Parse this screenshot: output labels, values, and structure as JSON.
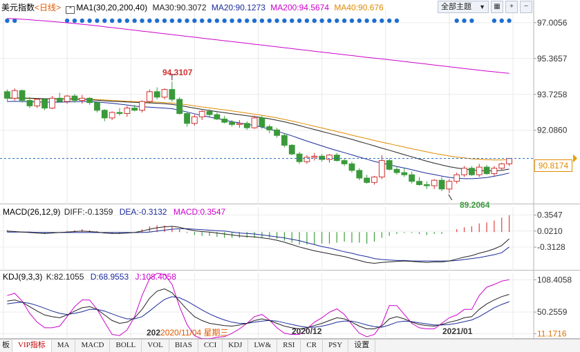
{
  "main_header": {
    "name": "美元指数",
    "period": "<日线>",
    "indicator": "MA1(30,20,200,40)",
    "ma30": "MA30:90.3072",
    "ma20": "MA20:90.1273",
    "ma200": "MA200:94.5674",
    "ma40": "MA40:90.676",
    "theme_button": "全部主题",
    "colors": {
      "ma30": "#222222",
      "ma20": "#1a2a9a",
      "ma200": "#cc00cc",
      "ma40": "#e08a00",
      "up": "#d03030",
      "down": "#3a9a3a"
    }
  },
  "macd_header": {
    "name": "MACD(26,12,9)",
    "diff": "DIFF:-0.1359",
    "dea": "DEA:-0.3132",
    "macd": "MACD:0.3547"
  },
  "kdj_header": {
    "name": "KDJ(9,3,3)",
    "k": "K:82.1055",
    "d": "D:68.9553",
    "j": "J:108.4058"
  },
  "annotations": {
    "high": "94.3107",
    "low": "89.2064"
  },
  "current_price": "90.8174",
  "date_labels": {
    "d1": "202",
    "d1_hover": "2020/11/04 星期三",
    "d2": "2020/12",
    "d3": "2021/01"
  },
  "tabs": [
    "板",
    "VIP指标",
    "MA",
    "MACD",
    "BOLL",
    "VOL",
    "BIAS",
    "CCI",
    "KDJ",
    "LW&",
    "RSI",
    "CR",
    "PSY",
    "设置"
  ],
  "chart_data": [
    {
      "type": "candlestick",
      "title": "美元指数 <日线>",
      "y_ticks": [
        "97.0056",
        "95.3657",
        "93.7258",
        "92.0860"
      ],
      "y_ticks_values": [
        97.0056,
        95.3657,
        93.7258,
        92.086
      ],
      "ylim": [
        88.7,
        97.6
      ],
      "x_labels": [
        "2020/12",
        "2021/01"
      ],
      "candles": [
        [
          93.85,
          93.95,
          93.4,
          93.55
        ],
        [
          93.55,
          94.0,
          93.45,
          93.9
        ],
        [
          93.9,
          93.95,
          93.35,
          93.45
        ],
        [
          93.45,
          93.6,
          93.1,
          93.2
        ],
        [
          93.2,
          93.55,
          93.1,
          93.5
        ],
        [
          93.5,
          93.55,
          93.0,
          93.1
        ],
        [
          93.1,
          93.65,
          93.05,
          93.55
        ],
        [
          93.55,
          93.8,
          93.35,
          93.4
        ],
        [
          93.4,
          93.7,
          93.3,
          93.65
        ],
        [
          93.65,
          93.75,
          93.35,
          93.45
        ],
        [
          93.45,
          93.7,
          93.3,
          93.55
        ],
        [
          93.55,
          93.6,
          93.25,
          93.35
        ],
        [
          93.35,
          93.4,
          92.9,
          93.0
        ],
        [
          93.0,
          93.05,
          92.5,
          92.65
        ],
        [
          92.65,
          92.95,
          92.55,
          92.9
        ],
        [
          92.9,
          93.1,
          92.75,
          92.85
        ],
        [
          92.85,
          93.2,
          92.7,
          93.1
        ],
        [
          93.1,
          93.25,
          92.95,
          93.0
        ],
        [
          93.0,
          93.45,
          92.9,
          93.4
        ],
        [
          93.4,
          93.95,
          93.3,
          93.85
        ],
        [
          93.85,
          94.05,
          93.5,
          93.6
        ],
        [
          93.6,
          94.0,
          93.5,
          93.95
        ],
        [
          93.95,
          94.31,
          93.4,
          93.5
        ],
        [
          93.5,
          93.6,
          92.8,
          92.85
        ],
        [
          92.85,
          92.95,
          92.25,
          92.4
        ],
        [
          92.4,
          92.8,
          92.3,
          92.7
        ],
        [
          92.7,
          93.0,
          92.55,
          92.95
        ],
        [
          92.95,
          93.05,
          92.7,
          92.8
        ],
        [
          92.8,
          92.9,
          92.55,
          92.6
        ],
        [
          92.6,
          92.75,
          92.4,
          92.45
        ],
        [
          92.45,
          92.55,
          92.25,
          92.35
        ],
        [
          92.35,
          92.55,
          92.2,
          92.4
        ],
        [
          92.4,
          92.5,
          92.1,
          92.2
        ],
        [
          92.2,
          92.75,
          92.15,
          92.65
        ],
        [
          92.65,
          92.75,
          92.15,
          92.25
        ],
        [
          92.25,
          92.35,
          91.95,
          92.1
        ],
        [
          92.1,
          92.2,
          91.75,
          91.85
        ],
        [
          91.85,
          91.95,
          91.3,
          91.4
        ],
        [
          91.4,
          91.45,
          90.95,
          91.0
        ],
        [
          91.0,
          91.1,
          90.55,
          90.65
        ],
        [
          90.65,
          90.95,
          90.55,
          90.85
        ],
        [
          90.85,
          91.05,
          90.7,
          90.9
        ],
        [
          90.9,
          91.0,
          90.65,
          90.75
        ],
        [
          90.75,
          91.0,
          90.6,
          90.95
        ],
        [
          90.95,
          91.05,
          90.65,
          90.7
        ],
        [
          90.7,
          90.8,
          90.45,
          90.55
        ],
        [
          90.55,
          90.65,
          90.15,
          90.25
        ],
        [
          90.25,
          90.35,
          89.8,
          89.9
        ],
        [
          89.9,
          90.05,
          89.65,
          89.7
        ],
        [
          89.7,
          90.0,
          89.6,
          89.95
        ],
        [
          89.95,
          90.95,
          89.85,
          90.7
        ],
        [
          90.7,
          90.8,
          90.25,
          90.3
        ],
        [
          90.3,
          90.45,
          90.05,
          90.15
        ],
        [
          90.15,
          90.35,
          89.95,
          90.05
        ],
        [
          90.05,
          90.2,
          89.65,
          89.75
        ],
        [
          89.75,
          89.95,
          89.55,
          89.6
        ],
        [
          89.6,
          89.75,
          89.4,
          89.55
        ],
        [
          89.55,
          89.85,
          89.4,
          89.8
        ],
        [
          89.8,
          89.95,
          89.3,
          89.4
        ],
        [
          89.4,
          89.85,
          89.21,
          89.75
        ],
        [
          89.75,
          90.15,
          89.65,
          90.05
        ],
        [
          90.05,
          90.45,
          89.95,
          90.35
        ],
        [
          90.35,
          90.45,
          90.0,
          90.05
        ],
        [
          90.05,
          90.55,
          89.95,
          90.4
        ],
        [
          90.4,
          90.5,
          90.05,
          90.1
        ],
        [
          90.1,
          90.45,
          90.0,
          90.35
        ],
        [
          90.35,
          90.6,
          90.25,
          90.55
        ],
        [
          90.55,
          90.8,
          90.45,
          90.8
        ]
      ],
      "ma30": [
        93.55,
        93.56,
        93.56,
        93.55,
        93.54,
        93.53,
        93.52,
        93.52,
        93.52,
        93.51,
        93.5,
        93.48,
        93.46,
        93.43,
        93.41,
        93.4,
        93.38,
        93.36,
        93.35,
        93.34,
        93.32,
        93.3,
        93.27,
        93.22,
        93.16,
        93.1,
        93.04,
        92.99,
        92.94,
        92.89,
        92.84,
        92.8,
        92.75,
        92.71,
        92.66,
        92.61,
        92.54,
        92.47,
        92.39,
        92.3,
        92.21,
        92.12,
        92.03,
        91.94,
        91.85,
        91.76,
        91.67,
        91.57,
        91.47,
        91.37,
        91.27,
        91.17,
        91.07,
        90.97,
        90.87,
        90.77,
        90.67,
        90.58,
        90.5,
        90.42,
        90.36,
        90.31,
        90.27,
        90.24,
        90.23,
        90.23,
        90.25,
        90.31
      ],
      "ma20": [
        93.4,
        93.41,
        93.4,
        93.39,
        93.38,
        93.37,
        93.37,
        93.37,
        93.38,
        93.39,
        93.4,
        93.4,
        93.38,
        93.35,
        93.32,
        93.28,
        93.24,
        93.19,
        93.16,
        93.14,
        93.12,
        93.1,
        93.07,
        93.0,
        92.92,
        92.84,
        92.76,
        92.69,
        92.62,
        92.55,
        92.48,
        92.42,
        92.36,
        92.3,
        92.23,
        92.14,
        92.04,
        91.94,
        91.83,
        91.71,
        91.59,
        91.48,
        91.37,
        91.26,
        91.16,
        91.06,
        90.96,
        90.86,
        90.76,
        90.66,
        90.58,
        90.51,
        90.43,
        90.36,
        90.28,
        90.2,
        90.12,
        90.06,
        89.99,
        89.93,
        89.89,
        89.87,
        89.87,
        89.89,
        89.92,
        89.98,
        90.05,
        90.13
      ],
      "ma200": [
        97.2,
        97.18,
        97.16,
        97.14,
        97.11,
        97.09,
        97.06,
        97.03,
        97.0,
        96.97,
        96.93,
        96.9,
        96.86,
        96.82,
        96.78,
        96.74,
        96.7,
        96.66,
        96.62,
        96.58,
        96.54,
        96.5,
        96.46,
        96.42,
        96.38,
        96.34,
        96.3,
        96.26,
        96.22,
        96.18,
        96.14,
        96.1,
        96.06,
        96.02,
        95.98,
        95.94,
        95.9,
        95.86,
        95.82,
        95.78,
        95.74,
        95.7,
        95.66,
        95.62,
        95.58,
        95.54,
        95.5,
        95.46,
        95.42,
        95.38,
        95.35,
        95.31,
        95.27,
        95.23,
        95.19,
        95.15,
        95.11,
        95.07,
        95.03,
        94.99,
        94.95,
        94.91,
        94.87,
        94.83,
        94.79,
        94.76,
        94.72,
        94.69
      ],
      "ma40": [
        93.55,
        93.55,
        93.54,
        93.54,
        93.53,
        93.52,
        93.52,
        93.52,
        93.52,
        93.52,
        93.51,
        93.5,
        93.49,
        93.47,
        93.45,
        93.43,
        93.41,
        93.4,
        93.39,
        93.38,
        93.37,
        93.35,
        93.33,
        93.29,
        93.25,
        93.2,
        93.15,
        93.11,
        93.06,
        93.02,
        92.97,
        92.92,
        92.87,
        92.82,
        92.77,
        92.71,
        92.65,
        92.58,
        92.51,
        92.43,
        92.35,
        92.27,
        92.19,
        92.11,
        92.03,
        91.95,
        91.86,
        91.78,
        91.7,
        91.62,
        91.54,
        91.47,
        91.39,
        91.32,
        91.24,
        91.17,
        91.1,
        91.03,
        90.97,
        90.91,
        90.86,
        90.82,
        90.78,
        90.76,
        90.74,
        90.73,
        90.73,
        90.75
      ]
    },
    {
      "type": "macd",
      "title": "MACD(26,12,9)",
      "y_ticks": [
        "0.3547",
        "0.0210",
        "-0.3128"
      ],
      "y_ticks_values": [
        0.3547,
        0.021,
        -0.3128
      ],
      "ylim": [
        -0.8,
        0.52
      ],
      "diff": [
        0.02,
        0.01,
        0.0,
        -0.01,
        -0.02,
        -0.03,
        -0.02,
        -0.01,
        0.0,
        0.01,
        0.02,
        0.01,
        0.0,
        -0.02,
        -0.03,
        -0.03,
        -0.02,
        -0.01,
        0.02,
        0.06,
        0.09,
        0.11,
        0.12,
        0.1,
        0.06,
        0.03,
        0.01,
        0.0,
        -0.02,
        -0.04,
        -0.06,
        -0.08,
        -0.09,
        -0.1,
        -0.12,
        -0.14,
        -0.17,
        -0.21,
        -0.26,
        -0.31,
        -0.35,
        -0.39,
        -0.42,
        -0.45,
        -0.48,
        -0.51,
        -0.55,
        -0.59,
        -0.63,
        -0.65,
        -0.63,
        -0.62,
        -0.61,
        -0.6,
        -0.61,
        -0.62,
        -0.63,
        -0.62,
        -0.62,
        -0.6,
        -0.56,
        -0.52,
        -0.49,
        -0.44,
        -0.4,
        -0.35,
        -0.28,
        -0.14
      ],
      "dea": [
        0.0,
        0.0,
        0.0,
        0.0,
        -0.01,
        -0.01,
        -0.01,
        -0.01,
        -0.01,
        -0.01,
        -0.01,
        -0.01,
        -0.01,
        -0.01,
        -0.01,
        -0.01,
        -0.01,
        -0.01,
        -0.01,
        0.0,
        0.02,
        0.04,
        0.06,
        0.07,
        0.07,
        0.06,
        0.05,
        0.04,
        0.03,
        0.02,
        0.0,
        -0.02,
        -0.03,
        -0.04,
        -0.06,
        -0.08,
        -0.1,
        -0.12,
        -0.15,
        -0.18,
        -0.22,
        -0.26,
        -0.3,
        -0.33,
        -0.37,
        -0.41,
        -0.44,
        -0.48,
        -0.51,
        -0.55,
        -0.57,
        -0.58,
        -0.59,
        -0.59,
        -0.6,
        -0.6,
        -0.6,
        -0.6,
        -0.6,
        -0.6,
        -0.59,
        -0.57,
        -0.55,
        -0.53,
        -0.5,
        -0.47,
        -0.43,
        -0.31
      ],
      "macd": [
        0.04,
        0.02,
        0.0,
        -0.02,
        -0.02,
        -0.04,
        -0.02,
        0.0,
        0.02,
        0.04,
        0.06,
        0.04,
        0.02,
        -0.02,
        -0.04,
        -0.04,
        -0.02,
        0.0,
        0.06,
        0.12,
        0.14,
        0.14,
        0.12,
        0.06,
        -0.02,
        -0.06,
        -0.08,
        -0.08,
        -0.1,
        -0.12,
        -0.12,
        -0.12,
        -0.12,
        -0.12,
        -0.12,
        -0.12,
        -0.14,
        -0.18,
        -0.22,
        -0.26,
        -0.26,
        -0.26,
        -0.24,
        -0.24,
        -0.22,
        -0.2,
        -0.22,
        -0.22,
        -0.24,
        -0.2,
        -0.12,
        -0.08,
        -0.04,
        -0.02,
        -0.02,
        -0.04,
        -0.06,
        -0.04,
        -0.04,
        0.0,
        0.06,
        0.1,
        0.12,
        0.18,
        0.2,
        0.24,
        0.3,
        0.35
      ]
    },
    {
      "type": "kdj",
      "title": "KDJ(9,3,3)",
      "y_ticks": [
        "108.4058",
        "50.2559",
        "11.1716"
      ],
      "y_ticks_values": [
        108.4058,
        50.2559,
        11.1716
      ],
      "ylim": [
        2,
        120
      ],
      "k": [
        70,
        72,
        68,
        60,
        52,
        45,
        42,
        40,
        45,
        52,
        58,
        60,
        55,
        45,
        35,
        30,
        32,
        40,
        55,
        75,
        88,
        92,
        85,
        70,
        55,
        42,
        35,
        30,
        28,
        26,
        25,
        27,
        30,
        35,
        38,
        35,
        30,
        25,
        22,
        20,
        22,
        26,
        30,
        35,
        40,
        38,
        32,
        25,
        20,
        20,
        25,
        38,
        42,
        38,
        32,
        28,
        26,
        25,
        28,
        32,
        35,
        40,
        42,
        55,
        65,
        72,
        78,
        82.1
      ],
      "d": [
        65,
        67,
        68,
        66,
        62,
        57,
        52,
        48,
        46,
        48,
        51,
        55,
        55,
        52,
        47,
        42,
        38,
        38,
        42,
        52,
        63,
        73,
        78,
        76,
        70,
        62,
        54,
        47,
        41,
        36,
        32,
        30,
        30,
        32,
        34,
        35,
        34,
        31,
        28,
        25,
        23,
        23,
        25,
        28,
        32,
        34,
        34,
        31,
        27,
        24,
        23,
        27,
        32,
        34,
        33,
        31,
        29,
        27,
        27,
        28,
        30,
        33,
        36,
        42,
        50,
        58,
        64,
        68.96
      ],
      "j": [
        80,
        84,
        70,
        48,
        32,
        22,
        22,
        25,
        42,
        60,
        72,
        72,
        55,
        32,
        10,
        8,
        18,
        42,
        80,
        110,
        120,
        118,
        100,
        60,
        28,
        8,
        2,
        2,
        5,
        6,
        12,
        20,
        30,
        42,
        46,
        36,
        22,
        12,
        10,
        10,
        20,
        32,
        40,
        50,
        56,
        46,
        28,
        12,
        6,
        10,
        28,
        62,
        62,
        46,
        30,
        22,
        20,
        20,
        30,
        40,
        45,
        55,
        55,
        80,
        95,
        100,
        106,
        108.4
      ]
    }
  ]
}
